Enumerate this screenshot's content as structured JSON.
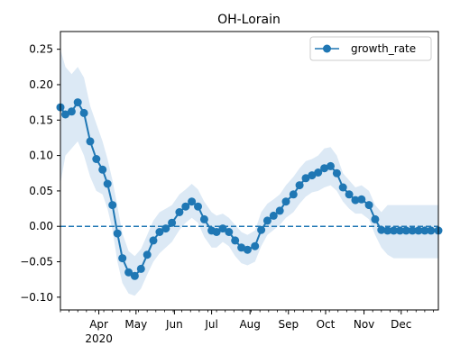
{
  "chart_data": {
    "type": "line",
    "title": "OH-Lorain",
    "xlabel": "",
    "ylabel": "",
    "x_range": [
      "2020-03-01",
      "2020-12-31"
    ],
    "ylim": [
      -0.118,
      0.275
    ],
    "grid": false,
    "legend_position": "top-right",
    "colors": {
      "series": "#1f77b4",
      "band": "#dce9f5",
      "zero_line": "#1f77b4"
    },
    "y_ticks": [
      {
        "value": -0.1,
        "label": "−0.10"
      },
      {
        "value": -0.05,
        "label": "−0.05"
      },
      {
        "value": 0.0,
        "label": "0.00"
      },
      {
        "value": 0.05,
        "label": "0.05"
      },
      {
        "value": 0.1,
        "label": "0.10"
      },
      {
        "value": 0.15,
        "label": "0.15"
      },
      {
        "value": 0.2,
        "label": "0.20"
      },
      {
        "value": 0.25,
        "label": "0.25"
      }
    ],
    "x_ticks": [
      {
        "date": "2020-04-01",
        "label": "Apr"
      },
      {
        "date": "2020-05-01",
        "label": "May"
      },
      {
        "date": "2020-06-01",
        "label": "Jun"
      },
      {
        "date": "2020-07-01",
        "label": "Jul"
      },
      {
        "date": "2020-08-01",
        "label": "Aug"
      },
      {
        "date": "2020-09-01",
        "label": "Sep"
      },
      {
        "date": "2020-10-01",
        "label": "Oct"
      },
      {
        "date": "2020-11-01",
        "label": "Nov"
      },
      {
        "date": "2020-12-01",
        "label": "Dec"
      }
    ],
    "year_label": "2020",
    "reference_line": {
      "y": 0.0,
      "style": "dashed"
    },
    "series": [
      {
        "name": "growth_rate",
        "marker": "circle",
        "x": [
          "2020-03-01",
          "2020-03-05",
          "2020-03-10",
          "2020-03-15",
          "2020-03-20",
          "2020-03-25",
          "2020-03-30",
          "2020-04-04",
          "2020-04-08",
          "2020-04-12",
          "2020-04-16",
          "2020-04-20",
          "2020-04-25",
          "2020-04-30",
          "2020-05-05",
          "2020-05-10",
          "2020-05-15",
          "2020-05-20",
          "2020-05-25",
          "2020-05-30",
          "2020-06-05",
          "2020-06-10",
          "2020-06-15",
          "2020-06-20",
          "2020-06-25",
          "2020-07-01",
          "2020-07-05",
          "2020-07-10",
          "2020-07-15",
          "2020-07-20",
          "2020-07-25",
          "2020-07-30",
          "2020-08-05",
          "2020-08-10",
          "2020-08-15",
          "2020-08-20",
          "2020-08-25",
          "2020-08-30",
          "2020-09-05",
          "2020-09-10",
          "2020-09-15",
          "2020-09-20",
          "2020-09-25",
          "2020-09-30",
          "2020-10-05",
          "2020-10-10",
          "2020-10-15",
          "2020-10-20",
          "2020-10-25",
          "2020-10-30",
          "2020-11-05",
          "2020-11-10",
          "2020-11-15",
          "2020-11-20",
          "2020-11-25",
          "2020-11-30",
          "2020-12-05",
          "2020-12-10",
          "2020-12-15",
          "2020-12-20",
          "2020-12-25",
          "2020-12-31"
        ],
        "y": [
          0.168,
          0.158,
          0.162,
          0.175,
          0.16,
          0.12,
          0.095,
          0.08,
          0.06,
          0.03,
          -0.01,
          -0.045,
          -0.065,
          -0.07,
          -0.06,
          -0.04,
          -0.02,
          -0.008,
          -0.003,
          0.005,
          0.02,
          0.028,
          0.035,
          0.028,
          0.01,
          -0.006,
          -0.008,
          -0.003,
          -0.008,
          -0.02,
          -0.03,
          -0.033,
          -0.028,
          -0.005,
          0.008,
          0.015,
          0.022,
          0.035,
          0.045,
          0.058,
          0.068,
          0.072,
          0.076,
          0.082,
          0.085,
          0.075,
          0.055,
          0.045,
          0.037,
          0.038,
          0.03,
          0.01,
          -0.005,
          -0.006,
          -0.006,
          -0.006,
          -0.006,
          -0.006,
          -0.006,
          -0.006,
          -0.006,
          -0.006
        ],
        "ci_low": [
          0.06,
          0.1,
          0.11,
          0.12,
          0.1,
          0.07,
          0.05,
          0.045,
          0.025,
          -0.005,
          -0.05,
          -0.08,
          -0.095,
          -0.098,
          -0.088,
          -0.068,
          -0.05,
          -0.038,
          -0.03,
          -0.022,
          -0.005,
          0.005,
          0.012,
          0.005,
          -0.015,
          -0.03,
          -0.03,
          -0.022,
          -0.028,
          -0.042,
          -0.052,
          -0.055,
          -0.05,
          -0.028,
          -0.012,
          -0.005,
          0.002,
          0.012,
          0.02,
          0.032,
          0.042,
          0.048,
          0.05,
          0.055,
          0.058,
          0.05,
          0.035,
          0.025,
          0.018,
          0.018,
          0.01,
          -0.012,
          -0.03,
          -0.04,
          -0.045,
          -0.045,
          -0.045,
          -0.045,
          -0.045,
          -0.045,
          -0.045,
          -0.045
        ],
        "ci_high": [
          0.25,
          0.225,
          0.215,
          0.225,
          0.21,
          0.17,
          0.145,
          0.12,
          0.095,
          0.065,
          0.028,
          -0.01,
          -0.035,
          -0.042,
          -0.032,
          -0.012,
          0.008,
          0.02,
          0.025,
          0.03,
          0.045,
          0.052,
          0.06,
          0.052,
          0.035,
          0.02,
          0.015,
          0.018,
          0.012,
          0.002,
          -0.008,
          -0.012,
          -0.006,
          0.02,
          0.032,
          0.038,
          0.045,
          0.058,
          0.07,
          0.082,
          0.092,
          0.095,
          0.1,
          0.11,
          0.112,
          0.1,
          0.075,
          0.065,
          0.055,
          0.058,
          0.05,
          0.03,
          0.02,
          0.03,
          0.03,
          0.03,
          0.03,
          0.03,
          0.03,
          0.03,
          0.03,
          0.03
        ]
      }
    ]
  }
}
